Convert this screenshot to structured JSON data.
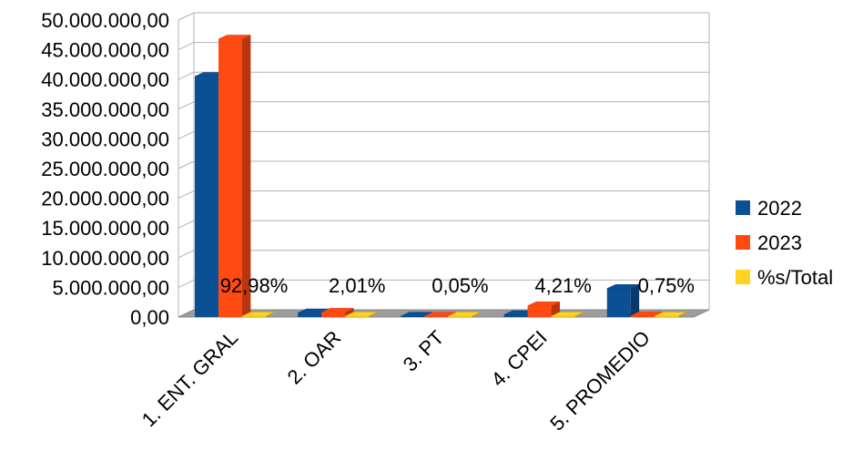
{
  "chart_data": {
    "type": "bar",
    "categories": [
      "1. ENT. GRAL",
      "2. OAR",
      "3. PT",
      "4. CPEI",
      "5. PROMEDIO"
    ],
    "series": [
      {
        "name": "2022",
        "values": [
          40500000,
          700000,
          60000,
          400000,
          4800000
        ],
        "color": "#0b4f94"
      },
      {
        "name": "2023",
        "values": [
          46800000,
          800000,
          25000,
          1900000,
          200000
        ],
        "color": "#ff4a12"
      },
      {
        "name": "%s/Total",
        "values": [
          92.98,
          2.01,
          0.05,
          4.21,
          0.75
        ],
        "color": "#ffd320"
      }
    ],
    "data_labels": [
      "92,98%",
      "2,01%",
      "0,05%",
      "4,21%",
      "0,75%"
    ],
    "y_tick_labels": [
      "0,00",
      "5.000.000,00",
      "10.000.000,00",
      "15.000.000,00",
      "20.000.000,00",
      "25.000.000,00",
      "30.000.000,00",
      "35.000.000,00",
      "40.000.000,00",
      "45.000.000,00",
      "50.000.000,00"
    ],
    "ylim": [
      0,
      50000000
    ],
    "grid": true,
    "legend_position": "right",
    "title": "",
    "xlabel": "",
    "ylabel": ""
  }
}
